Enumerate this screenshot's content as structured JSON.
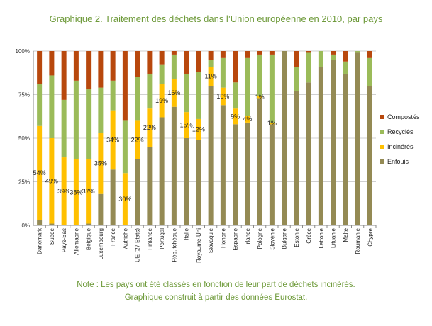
{
  "chart_data": {
    "type": "bar",
    "stacked": true,
    "title": "Graphique 2. Traitement des déchets dans l’Union européenne en 2010, par pays",
    "categories": [
      "Danemark",
      "Suède",
      "Pays-Bas",
      "Allemagne",
      "Belgique",
      "Luxembourg",
      "France",
      "Autriche",
      "UE (27 Etats)",
      "Finlande",
      "Portugal",
      "Rép. tchèque",
      "Italie",
      "Royaume-Uni",
      "Slovaquie",
      "Hongrie",
      "Espagne",
      "Irlande",
      "Pologne",
      "Slovénie",
      "Bulgarie",
      "Estonie",
      "Grèce",
      "Lettonie",
      "Lituanie",
      "Malte",
      "Roumanie",
      "Chypre"
    ],
    "series": [
      {
        "name": "Enfouis",
        "color": "#948a54",
        "values": [
          3,
          1,
          0,
          0,
          1,
          18,
          32,
          0,
          38,
          45,
          62,
          68,
          50,
          49,
          80,
          69,
          58,
          59,
          73,
          58,
          100,
          77,
          82,
          91,
          95,
          87,
          99,
          80
        ]
      },
      {
        "name": "Incinérés",
        "color": "#ffc000",
        "values": [
          54,
          49,
          39,
          38,
          37,
          35,
          34,
          30,
          22,
          22,
          19,
          16,
          15,
          12,
          11,
          10,
          9,
          4,
          1,
          1,
          0,
          0,
          0,
          0,
          0,
          0,
          0,
          0
        ]
      },
      {
        "name": "Recyclés",
        "color": "#9bbb59",
        "values": [
          24,
          36,
          33,
          45,
          40,
          26,
          17,
          30,
          25,
          20,
          11,
          14,
          22,
          27,
          4,
          17,
          15,
          33,
          24,
          39,
          0,
          14,
          17,
          9,
          3,
          7,
          1,
          16
        ]
      },
      {
        "name": "Compostés",
        "color": "#b8480d",
        "values": [
          19,
          14,
          28,
          17,
          22,
          21,
          17,
          40,
          15,
          13,
          8,
          2,
          13,
          12,
          5,
          4,
          18,
          4,
          2,
          2,
          0,
          9,
          1,
          0,
          2,
          6,
          0,
          4
        ]
      }
    ],
    "data_labels": [
      "54%",
      "49%",
      "39%",
      "38%",
      "37%",
      "35%",
      "34%",
      "30%",
      "22%",
      "22%",
      "19%",
      "16%",
      "15%",
      "12%",
      "11%",
      "10%",
      "9%",
      "4%",
      "1%",
      "1%",
      "",
      "",
      "",
      "",
      "",
      "",
      "",
      ""
    ],
    "y_ticks": [
      "0%",
      "25%",
      "50%",
      "75%",
      "100%"
    ],
    "ylim": [
      0,
      100
    ],
    "legend_position": "right",
    "grid": true
  },
  "notes": {
    "line1": "Note : Les pays ont été classés en fonction de leur part de déchets incinérés.",
    "line2": "Graphique construit à partir des données Eurostat."
  }
}
